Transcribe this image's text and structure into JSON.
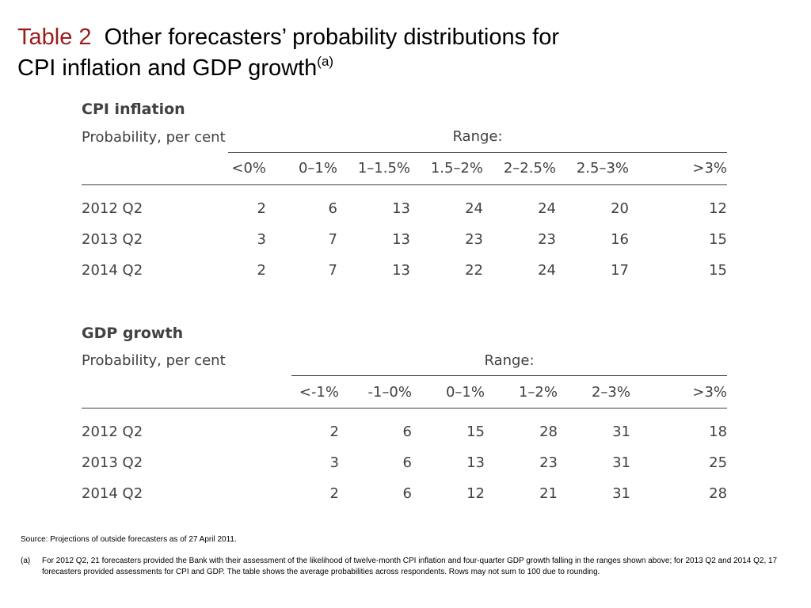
{
  "title": {
    "label": "Table 2",
    "line1": "Other forecasters’ probability distributions for",
    "line2": "CPI inflation and GDP growth",
    "note_marker": "(a)"
  },
  "cpi": {
    "section_title": "CPI inflation",
    "prob_label": "Probability, per cent",
    "range_label": "Range:",
    "columns": [
      "<0%",
      "0–1%",
      "1–1.5%",
      "1.5–2%",
      "2–2.5%",
      "2.5–3%",
      ">3%"
    ],
    "rows": [
      {
        "label": "2012 Q2",
        "values": [
          "2",
          "6",
          "13",
          "24",
          "24",
          "20",
          "12"
        ]
      },
      {
        "label": "2013 Q2",
        "values": [
          "3",
          "7",
          "13",
          "23",
          "23",
          "16",
          "15"
        ]
      },
      {
        "label": "2014 Q2",
        "values": [
          "2",
          "7",
          "13",
          "22",
          "24",
          "17",
          "15"
        ]
      }
    ]
  },
  "gdp": {
    "section_title": "GDP growth",
    "prob_label": "Probability, per cent",
    "range_label": "Range:",
    "columns": [
      "<-1%",
      "-1–0%",
      "0–1%",
      "1–2%",
      "2–3%",
      ">3%"
    ],
    "rows": [
      {
        "label": "2012 Q2",
        "values": [
          "2",
          "6",
          "15",
          "28",
          "31",
          "18"
        ]
      },
      {
        "label": "2013 Q2",
        "values": [
          "3",
          "6",
          "13",
          "23",
          "31",
          "25"
        ]
      },
      {
        "label": "2014 Q2",
        "values": [
          "2",
          "6",
          "12",
          "21",
          "31",
          "28"
        ]
      }
    ]
  },
  "source": "Source:  Projections of outside forecasters as of 27 April 2011.",
  "footnote": {
    "marker": "(a)",
    "text": "For 2012 Q2, 21 forecasters provided the Bank with their assessment of the likelihood of twelve-month CPI inflation and four-quarter GDP growth falling in the ranges shown above;  for 2013 Q2 and 2014 Q2, 17 forecasters provided assessments for CPI and GDP.  The table shows the average probabilities across respondents.  Rows may not sum to 100 due to rounding."
  }
}
